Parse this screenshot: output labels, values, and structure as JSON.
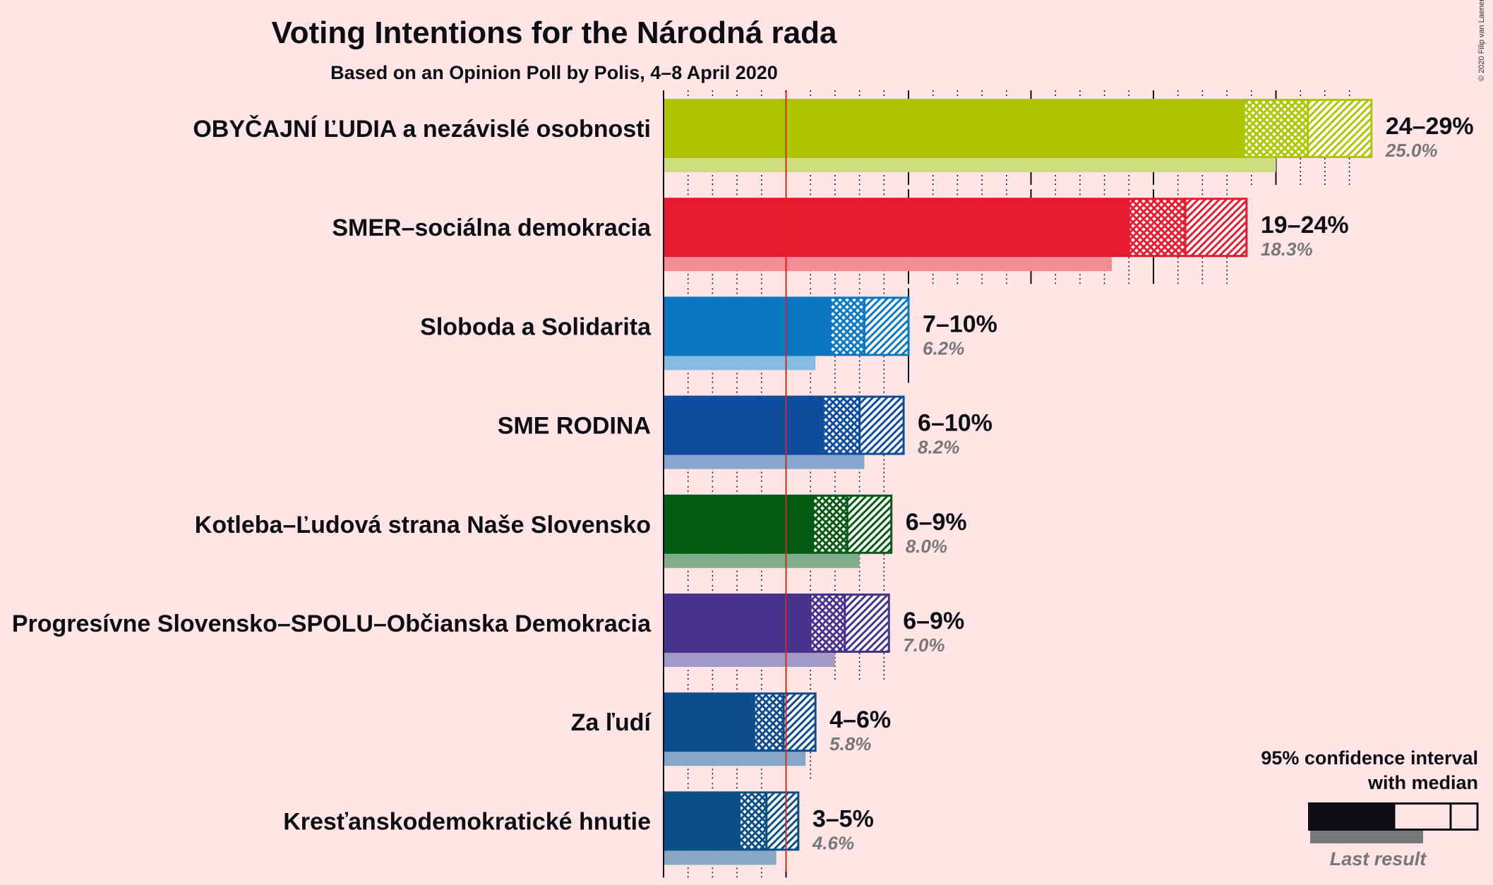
{
  "chart_data": {
    "type": "bar",
    "title": "Voting Intentions for the Národná rada",
    "subtitle": "Based on an Opinion Poll by Polis, 4–8 April 2020",
    "copyright": "© 2020 Filip van Laenen",
    "xlim": [
      0,
      29
    ],
    "threshold": 5,
    "parties": [
      {
        "name": "OBYČAJNÍ ĽUDIA a nezávislé osobnosti",
        "range_label": "24–29%",
        "last_label": "25.0%",
        "low": 23.7,
        "median": 26.3,
        "high": 28.9,
        "last": 25.0,
        "color": "#ADC600",
        "pale": "#CEDD80"
      },
      {
        "name": "SMER–sociálna demokracia",
        "range_label": "19–24%",
        "last_label": "18.3%",
        "low": 19.0,
        "median": 21.3,
        "high": 23.8,
        "last": 18.3,
        "color": "#E81A30",
        "pale": "#F48D98"
      },
      {
        "name": "Sloboda a Solidarita",
        "range_label": "7–10%",
        "last_label": "6.2%",
        "low": 6.8,
        "median": 8.2,
        "high": 10.0,
        "last": 6.2,
        "color": "#0A77C2",
        "pale": "#85BBE1"
      },
      {
        "name": "SME RODINA",
        "range_label": "6–10%",
        "last_label": "8.2%",
        "low": 6.5,
        "median": 8.0,
        "high": 9.8,
        "last": 8.2,
        "color": "#0F4C9C",
        "pale": "#87A6CE"
      },
      {
        "name": "Kotleba–Ľudová strana Naše Slovensko",
        "range_label": "6–9%",
        "last_label": "8.0%",
        "low": 6.1,
        "median": 7.5,
        "high": 9.3,
        "last": 8.0,
        "color": "#055A14",
        "pale": "#82AD8A"
      },
      {
        "name": "Progresívne Slovensko–SPOLU–Občianska Demokracia",
        "range_label": "6–9%",
        "last_label": "7.0%",
        "low": 6.0,
        "median": 7.4,
        "high": 9.2,
        "last": 7.0,
        "color": "#47338E",
        "pale": "#A399C7"
      },
      {
        "name": "Za ľudí",
        "range_label": "4–6%",
        "last_label": "5.8%",
        "low": 3.7,
        "median": 4.9,
        "high": 6.2,
        "last": 5.8,
        "color": "#0F4C8D",
        "pale": "#87A6C6"
      },
      {
        "name": "Kresťanskodemokratické hnutie",
        "range_label": "3–5%",
        "last_label": "4.6%",
        "low": 3.1,
        "median": 4.2,
        "high": 5.5,
        "last": 4.6,
        "color": "#0B4F86",
        "pale": "#85A7C3"
      }
    ],
    "legend": {
      "ci_label_1": "95% confidence interval",
      "ci_label_2": "with median",
      "last_label": "Last result",
      "color": "#0d0d14"
    }
  }
}
